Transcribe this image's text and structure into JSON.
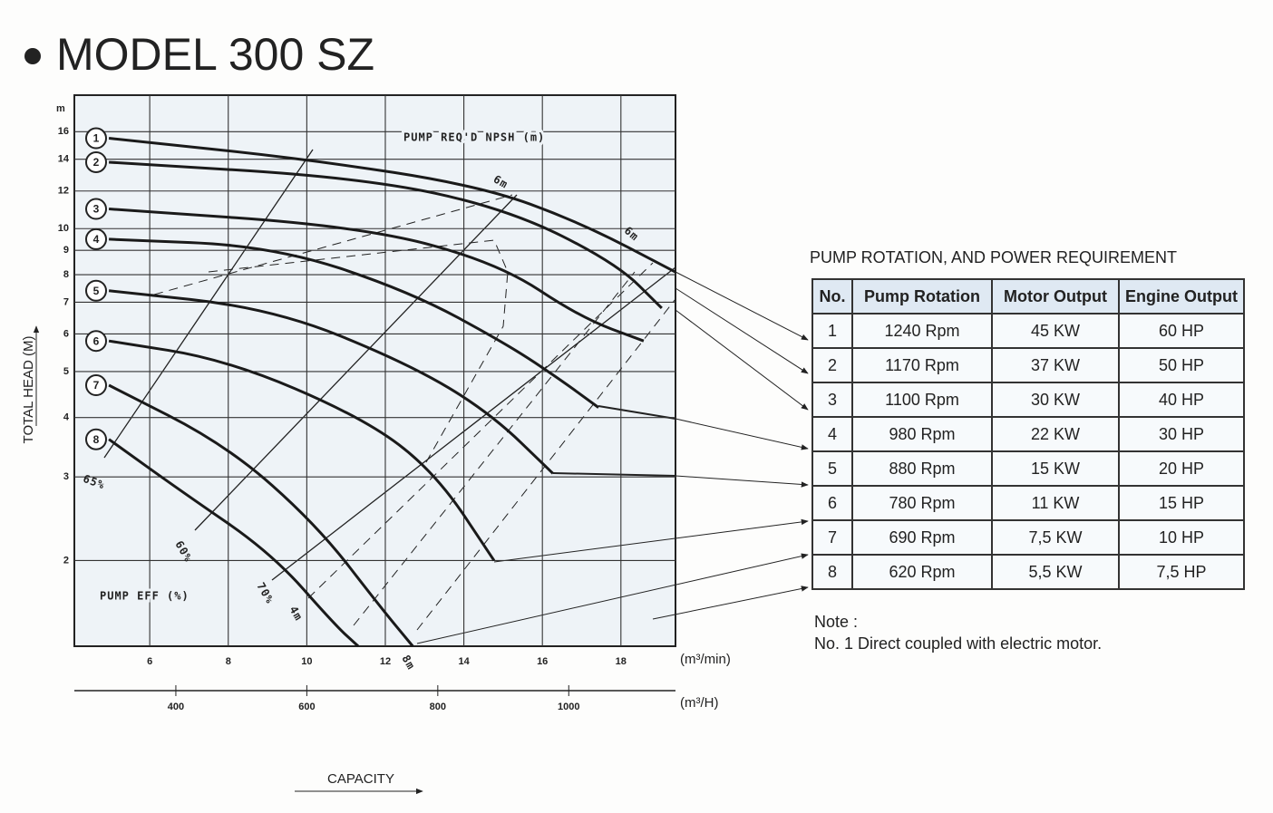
{
  "title": "MODEL 300 SZ",
  "chart_data": {
    "type": "line",
    "y_label": "TOTAL HEAD (M)",
    "y_unit": "m",
    "x_unit": "(m³/min)",
    "x2_unit": "(m³/H)",
    "x_label": "CAPACITY",
    "log_y": true,
    "grid": true,
    "color": "#1a1a1a",
    "xlim": [
      4.08,
      19.39
    ],
    "xticks": [
      6,
      8,
      10,
      12,
      14,
      16,
      18
    ],
    "x2lim": [
      245,
      1163
    ],
    "x2ticks": [
      400,
      600,
      800,
      1000
    ],
    "ylim": [
      1.32,
      19.1
    ],
    "yticks": [
      2,
      3,
      4,
      5,
      6,
      7,
      8,
      9,
      10,
      12,
      14,
      16
    ],
    "series": [
      {
        "name": "1",
        "color": "#1a1a1a",
        "x": [
          4.96,
          10.04,
          14.42,
          16.97,
          19.39
        ],
        "values": [
          15.5,
          14.0,
          12.3,
          10.3,
          8.1
        ]
      },
      {
        "name": "2",
        "color": "#1a1a1a",
        "x": [
          4.96,
          11.43,
          15.12,
          17.89,
          19.04
        ],
        "values": [
          13.8,
          12.8,
          11.0,
          8.45,
          6.8
        ]
      },
      {
        "name": "3",
        "color": "#1a1a1a",
        "x": [
          4.96,
          11.43,
          14.89,
          16.97,
          18.58
        ],
        "values": [
          11.0,
          10.1,
          8.45,
          6.5,
          5.8
        ]
      },
      {
        "name": "4",
        "color": "#1a1a1a",
        "x": [
          4.96,
          9.11,
          12.58,
          15.12,
          16.5,
          17.43
        ],
        "values": [
          9.5,
          9.2,
          7.4,
          5.7,
          4.78,
          4.2
        ]
      },
      {
        "name": "5",
        "color": "#1a1a1a",
        "x": [
          4.96,
          9.11,
          12.58,
          14.66,
          16.27
        ],
        "values": [
          7.4,
          6.8,
          5.2,
          4.1,
          3.05
        ]
      },
      {
        "name": "6",
        "color": "#1a1a1a",
        "x": [
          4.96,
          7.96,
          11.43,
          13.27,
          14.77
        ],
        "values": [
          5.8,
          5.3,
          4.0,
          3.07,
          2.0
        ]
      },
      {
        "name": "7",
        "color": "#1a1a1a",
        "x": [
          4.96,
          7.96,
          10.27,
          11.89,
          12.7
        ],
        "values": [
          4.68,
          3.5,
          2.37,
          1.59,
          1.32
        ]
      },
      {
        "name": "8",
        "color": "#1a1a1a",
        "x": [
          4.96,
          6.8,
          9.11,
          10.73,
          11.31
        ],
        "values": [
          3.6,
          2.8,
          2.07,
          1.46,
          1.32
        ]
      }
    ],
    "annotations": [
      "PUMP REQ'D NPSH (m)",
      "PUMP EFF (%)",
      "65%",
      "60%",
      "70%",
      "4m",
      "6m",
      "6m",
      "8m"
    ]
  },
  "table": {
    "title": "PUMP ROTATION, AND POWER REQUIREMENT",
    "header": [
      "No.",
      "Pump Rotation",
      "Motor Output",
      "Engine Output"
    ],
    "rows": [
      [
        "1",
        "1240 Rpm",
        "45 KW",
        "60 HP"
      ],
      [
        "2",
        "1170 Rpm",
        "37 KW",
        "50 HP"
      ],
      [
        "3",
        "1100 Rpm",
        "30 KW",
        "40 HP"
      ],
      [
        "4",
        "980 Rpm",
        "22 KW",
        "30 HP"
      ],
      [
        "5",
        "880 Rpm",
        "15 KW",
        "20 HP"
      ],
      [
        "6",
        "780 Rpm",
        "11 KW",
        "15 HP"
      ],
      [
        "7",
        "690 Rpm",
        "7,5 KW",
        "10 HP"
      ],
      [
        "8",
        "620 Rpm",
        "5,5 KW",
        "7,5 HP"
      ]
    ],
    "note_title": "Note :",
    "note": "No. 1 Direct coupled with electric motor."
  }
}
